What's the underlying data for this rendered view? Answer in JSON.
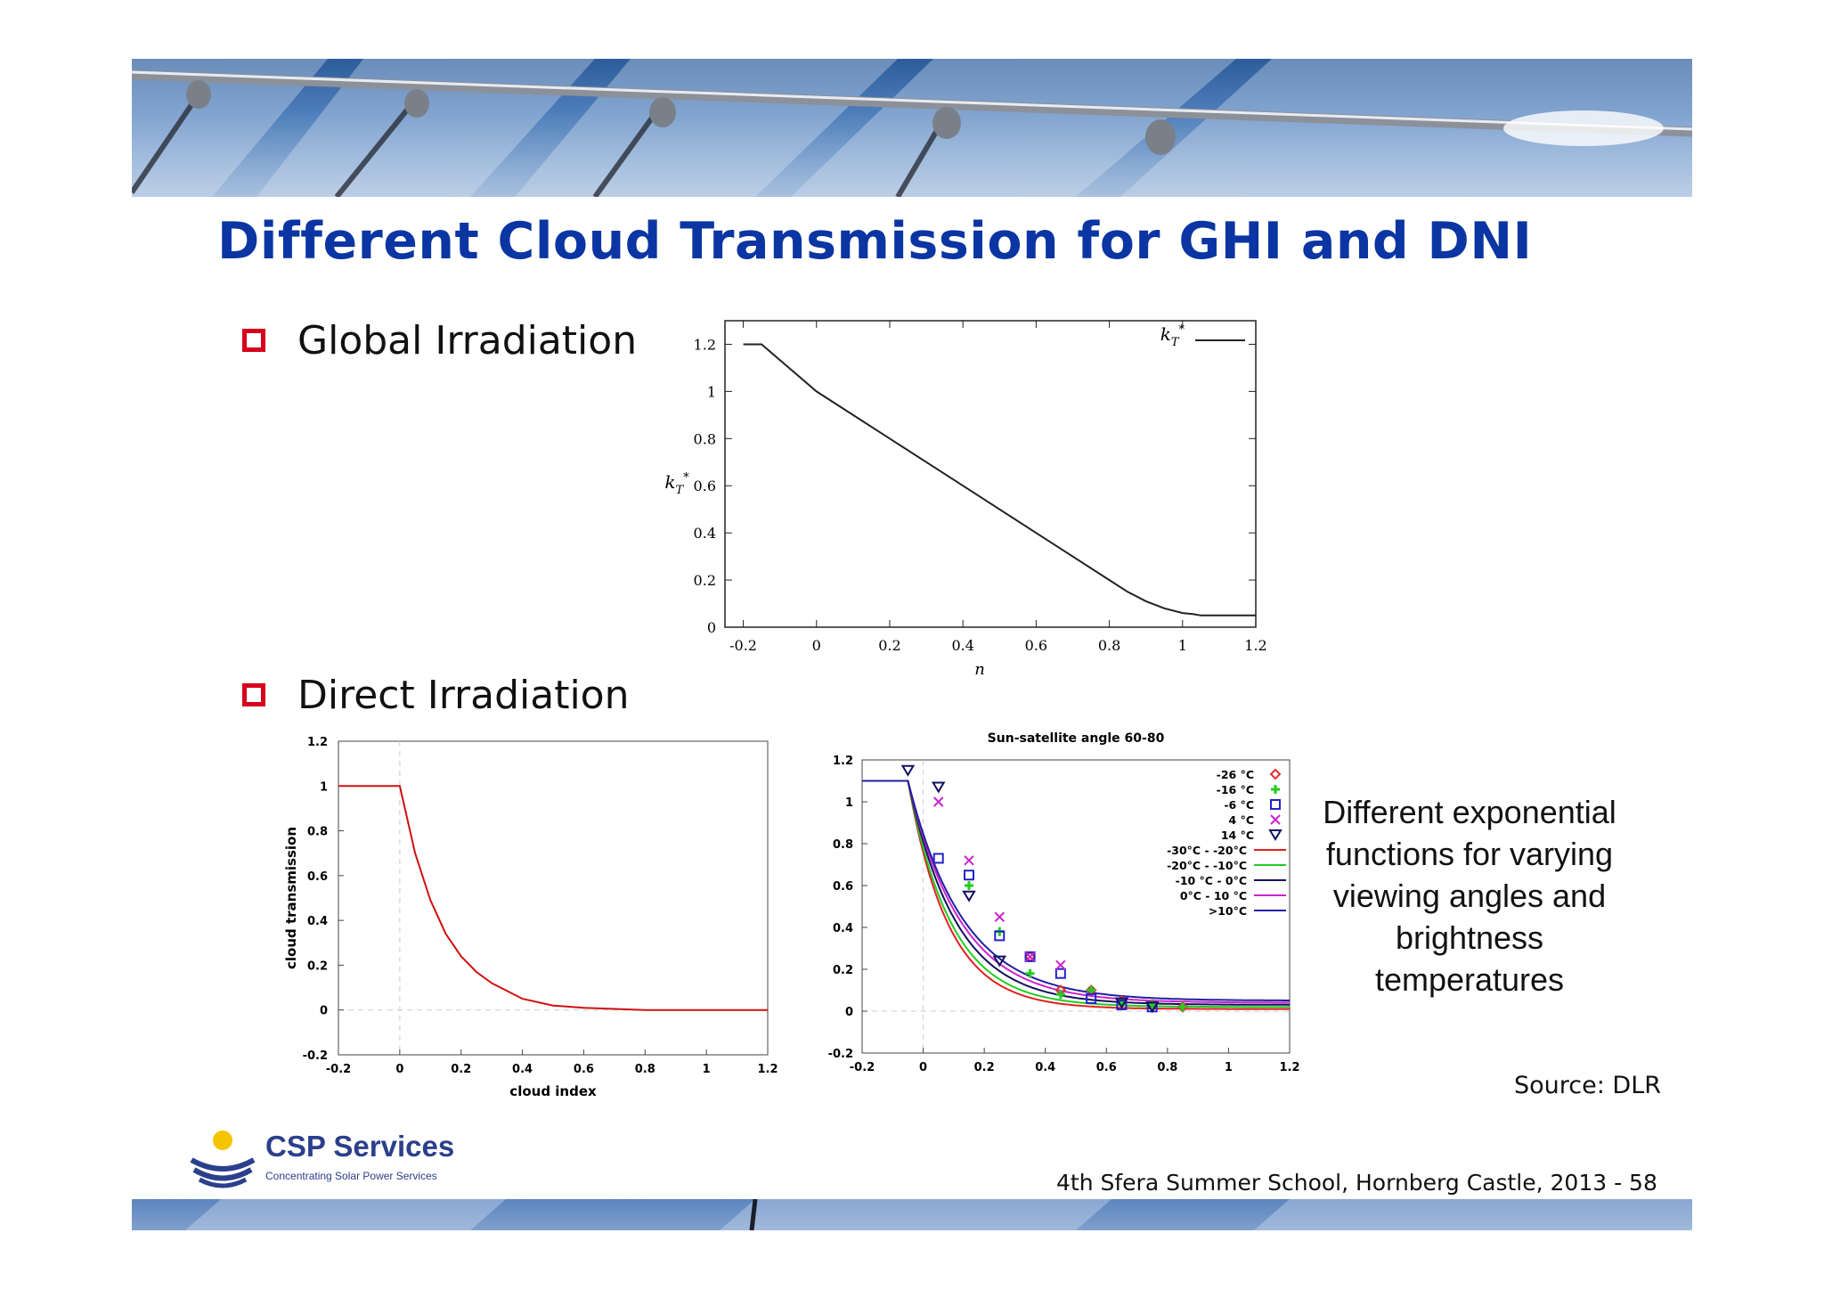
{
  "slide": {
    "title": "Different Cloud Transmission for GHI and DNI",
    "bullet_global": "Global Irradiation",
    "bullet_direct": "Direct Irradiation",
    "side_note": [
      "Different exponential",
      "functions for varying",
      "viewing angles and",
      "brightness",
      "temperatures"
    ],
    "source": "Source: DLR",
    "footer": "4th Sfera Summer School, Hornberg Castle, 2013   - 58",
    "logo_name": "CSP Services",
    "logo_tagline": "Concentrating Solar Power Services",
    "colors": {
      "title": "#0a35a3",
      "bullet_box": "#d6001c",
      "logo": "#2b3f8c"
    }
  },
  "chart_data": [
    {
      "id": "kt",
      "type": "line",
      "title": "",
      "xlabel": "n",
      "ylabel": "k*_T",
      "xlim": [
        -0.25,
        1.2
      ],
      "ylim": [
        0,
        1.3
      ],
      "xticks": [
        "-0.2",
        "0",
        "0.2",
        "0.4",
        "0.6",
        "0.8",
        "1",
        "1.2"
      ],
      "yticks": [
        "0",
        "0.2",
        "0.4",
        "0.6",
        "0.8",
        "1",
        "1.2"
      ],
      "legend_position": "top-right",
      "series": [
        {
          "name": "k*_T",
          "color": "#222222",
          "x": [
            -0.2,
            -0.15,
            0,
            0.2,
            0.4,
            0.6,
            0.8,
            0.85,
            0.9,
            0.95,
            1.0,
            1.03,
            1.05,
            1.2
          ],
          "y": [
            1.2,
            1.2,
            1.0,
            0.8,
            0.6,
            0.4,
            0.2,
            0.15,
            0.11,
            0.08,
            0.06,
            0.055,
            0.05,
            0.05
          ]
        }
      ]
    },
    {
      "id": "dni",
      "type": "line",
      "title": "",
      "xlabel": "cloud index",
      "ylabel": "cloud transmission",
      "xlim": [
        -0.2,
        1.2
      ],
      "ylim": [
        -0.2,
        1.2
      ],
      "xticks": [
        "-0.2",
        "0",
        "0.2",
        "0.4",
        "0.6",
        "0.8",
        "1",
        "1.2"
      ],
      "yticks": [
        "-0.2",
        "0",
        "0.2",
        "0.4",
        "0.6",
        "0.8",
        "1",
        "1.2"
      ],
      "series": [
        {
          "color": "#d01010",
          "x": [
            -0.2,
            0,
            0.05,
            0.1,
            0.15,
            0.2,
            0.25,
            0.3,
            0.4,
            0.5,
            0.6,
            0.8,
            1.0,
            1.2
          ],
          "y": [
            1.0,
            1.0,
            0.7,
            0.49,
            0.34,
            0.24,
            0.17,
            0.12,
            0.05,
            0.02,
            0.01,
            0.0,
            0.0,
            0.0
          ]
        }
      ]
    },
    {
      "id": "sat",
      "type": "scatter",
      "title": "Sun-satellite angle 60-80",
      "xlabel": "",
      "ylabel": "",
      "xlim": [
        -0.2,
        1.2
      ],
      "ylim": [
        -0.2,
        1.2
      ],
      "xticks": [
        "-0.2",
        "0",
        "0.2",
        "0.4",
        "0.6",
        "0.8",
        "1",
        "1.2"
      ],
      "yticks": [
        "-0.2",
        "0",
        "0.2",
        "0.4",
        "0.6",
        "0.8",
        "1",
        "1.2"
      ],
      "legend_position": "top-right",
      "points": [
        {
          "name": "-26 °C",
          "marker": "diamond",
          "color": "#e03030",
          "x": [
            0.35,
            0.45,
            0.55,
            0.65,
            0.75,
            0.85
          ],
          "y": [
            0.26,
            0.1,
            0.1,
            0.05,
            0.03,
            0.02
          ]
        },
        {
          "name": "-16 °C",
          "marker": "plus",
          "color": "#22cc22",
          "x": [
            0.15,
            0.25,
            0.35,
            0.45,
            0.55,
            0.65,
            0.75,
            0.85
          ],
          "y": [
            0.6,
            0.38,
            0.18,
            0.08,
            0.1,
            0.04,
            0.03,
            0.02
          ]
        },
        {
          "name": "-6 °C",
          "marker": "square",
          "color": "#2222cc",
          "x": [
            0.05,
            0.15,
            0.25,
            0.35,
            0.45,
            0.55,
            0.65,
            0.75
          ],
          "y": [
            0.73,
            0.65,
            0.36,
            0.26,
            0.18,
            0.06,
            0.03,
            0.02
          ]
        },
        {
          "name": "4 °C",
          "marker": "cross",
          "color": "#cc22cc",
          "x": [
            0.05,
            0.15,
            0.25,
            0.35,
            0.45
          ],
          "y": [
            1.0,
            0.72,
            0.45,
            0.26,
            0.22
          ]
        },
        {
          "name": "14 °C",
          "marker": "triangle",
          "color": "#101060",
          "x": [
            -0.05,
            0.05,
            0.15,
            0.25,
            0.65,
            0.75
          ],
          "y": [
            1.15,
            1.07,
            0.55,
            0.24,
            0.04,
            0.02
          ]
        }
      ],
      "series": [
        {
          "name": "-30°C - -20°C",
          "color": "#e02020",
          "k": 7.5,
          "floor": 0.01
        },
        {
          "name": "-20°C - -10°C",
          "color": "#22cc22",
          "k": 7.0,
          "floor": 0.02
        },
        {
          "name": "-10 °C - 0°C",
          "color": "#101060",
          "k": 6.3,
          "floor": 0.03
        },
        {
          "name": "0°C - 10 °C",
          "color": "#cc22cc",
          "k": 5.8,
          "floor": 0.04
        },
        {
          "name": ">10°C",
          "color": "#2020a0",
          "k": 5.5,
          "floor": 0.05
        }
      ]
    }
  ]
}
